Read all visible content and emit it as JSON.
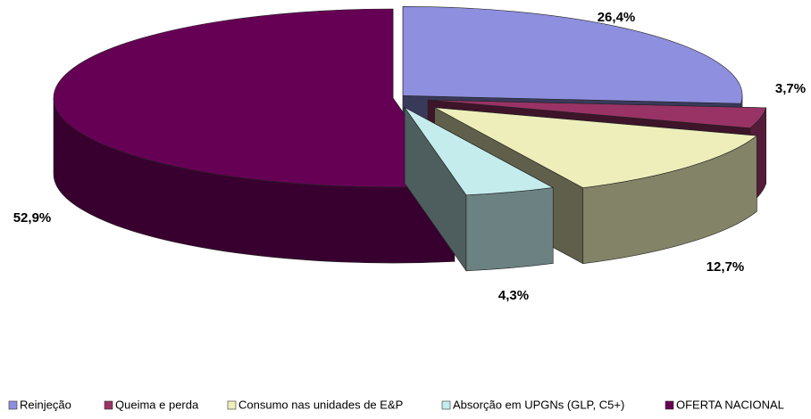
{
  "chart_data": {
    "type": "pie",
    "categories": [
      "Reinjeção",
      "Queima e perda",
      "Consumo nas unidades de E&P",
      "Absorção em UPGNs (GLP, C5+)",
      "OFERTA NACIONAL"
    ],
    "values": [
      26.4,
      3.7,
      12.7,
      4.3,
      52.9
    ],
    "value_labels": [
      "26,4%",
      "3,7%",
      "12,7%",
      "4,3%",
      "52,9%"
    ],
    "colors": [
      "#8f8fe0",
      "#993366",
      "#eeeebb",
      "#c4ecec",
      "#660055"
    ],
    "legend": "bottom"
  }
}
